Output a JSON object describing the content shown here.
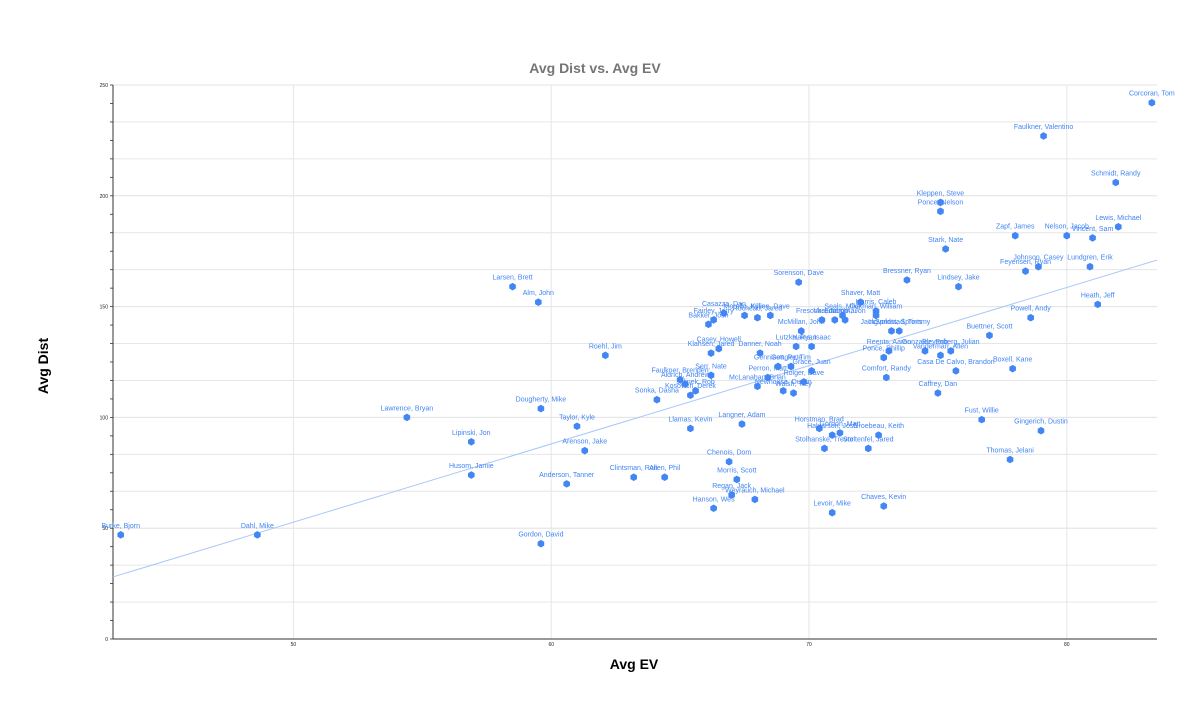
{
  "chart_data": {
    "type": "scatter",
    "title": "Avg Dist vs. Avg EV",
    "xlabel": "Avg EV",
    "ylabel": "Avg Dist",
    "xlim": [
      43,
      83.5
    ],
    "ylim": [
      0,
      250
    ],
    "x_ticks": [
      50,
      60,
      70,
      80
    ],
    "y_ticks": [
      0,
      50,
      100,
      150,
      200,
      250
    ],
    "grid": true,
    "legend": "none",
    "trendline": {
      "type": "linear",
      "x": [
        43,
        83.5
      ],
      "y": [
        28,
        171
      ]
    },
    "points": [
      {
        "label": "Corcoran, Tom",
        "x": 83.3,
        "y": 242
      },
      {
        "label": "Faulkner, Valentino",
        "x": 79.1,
        "y": 227
      },
      {
        "label": "Schmidt, Randy",
        "x": 81.9,
        "y": 206
      },
      {
        "label": "Kleppen, Steve",
        "x": 75.1,
        "y": 197
      },
      {
        "label": "Ponce, Nelson",
        "x": 75.1,
        "y": 193
      },
      {
        "label": "Zapf, James",
        "x": 78.0,
        "y": 182
      },
      {
        "label": "Nelson, Jacob",
        "x": 80.0,
        "y": 182
      },
      {
        "label": "Vincent, Sam",
        "x": 81.0,
        "y": 181
      },
      {
        "label": "Lewis, Michael",
        "x": 82.0,
        "y": 186
      },
      {
        "label": "Stark, Nate",
        "x": 75.3,
        "y": 176
      },
      {
        "label": "Johnson, Casey",
        "x": 78.9,
        "y": 168
      },
      {
        "label": "Feyerisen, Ryan",
        "x": 78.4,
        "y": 166
      },
      {
        "label": "Lundgren, Erik",
        "x": 80.9,
        "y": 168
      },
      {
        "label": "Bressner, Ryan",
        "x": 73.8,
        "y": 162
      },
      {
        "label": "Lindsey, Jake",
        "x": 75.8,
        "y": 159
      },
      {
        "label": "Heath, Jeff",
        "x": 81.2,
        "y": 151
      },
      {
        "label": "Powell, Andy",
        "x": 78.6,
        "y": 145
      },
      {
        "label": "Sorenson, Dave",
        "x": 69.6,
        "y": 161
      },
      {
        "label": "Larsen, Brett",
        "x": 58.5,
        "y": 159
      },
      {
        "label": "Alm, John",
        "x": 59.5,
        "y": 152
      },
      {
        "label": "Casazza, Dan",
        "x": 66.7,
        "y": 147
      },
      {
        "label": "Fairley, Jerry",
        "x": 66.3,
        "y": 144
      },
      {
        "label": "Morello, Kylie",
        "x": 67.5,
        "y": 146
      },
      {
        "label": "Killion, Dave",
        "x": 68.5,
        "y": 146
      },
      {
        "label": "Rocheau, Jared",
        "x": 68.0,
        "y": 145
      },
      {
        "label": "Bakker, Josh",
        "x": 66.1,
        "y": 142
      },
      {
        "label": "Shaver, Matt",
        "x": 72.0,
        "y": 152
      },
      {
        "label": "Harris, Caleb",
        "x": 72.6,
        "y": 148
      },
      {
        "label": "Seals, Mike",
        "x": 71.3,
        "y": 146
      },
      {
        "label": "Ockman, William",
        "x": 72.6,
        "y": 146
      },
      {
        "label": "Fresonke, Jacob",
        "x": 70.5,
        "y": 144
      },
      {
        "label": "Vassman, Kai",
        "x": 71.0,
        "y": 144
      },
      {
        "label": "Edstrom, Jon",
        "x": 71.4,
        "y": 144
      },
      {
        "label": "McMillan, John",
        "x": 69.7,
        "y": 139
      },
      {
        "label": "JackSprints, Sprints",
        "x": 73.2,
        "y": 139
      },
      {
        "label": "Ingvoldstad, Tommy",
        "x": 73.5,
        "y": 139
      },
      {
        "label": "Buettner, Scott",
        "x": 77.0,
        "y": 137
      },
      {
        "label": "Roehl, Jim",
        "x": 62.1,
        "y": 128
      },
      {
        "label": "Casey, Howell",
        "x": 66.5,
        "y": 131
      },
      {
        "label": "Klahsen, Jared",
        "x": 66.2,
        "y": 129
      },
      {
        "label": "Lutzka, Ryan",
        "x": 69.5,
        "y": 132
      },
      {
        "label": "Hales, Isaac",
        "x": 70.1,
        "y": 132
      },
      {
        "label": "Danner, Noah",
        "x": 68.1,
        "y": 129
      },
      {
        "label": "Bleyenberg, Julian",
        "x": 75.5,
        "y": 130
      },
      {
        "label": "Reents, Aaron",
        "x": 73.1,
        "y": 130
      },
      {
        "label": "Gonzalez, Rob",
        "x": 74.5,
        "y": 130
      },
      {
        "label": "Ponce, Phillip",
        "x": 72.9,
        "y": 127
      },
      {
        "label": "Vandermarr, Allen",
        "x": 75.1,
        "y": 128
      },
      {
        "label": "Gennicott, Pete",
        "x": 68.8,
        "y": 123
      },
      {
        "label": "Grace, Juan",
        "x": 70.1,
        "y": 121
      },
      {
        "label": "Gengler, Tim",
        "x": 69.3,
        "y": 123
      },
      {
        "label": "Casa De Calvo, Brandon",
        "x": 75.7,
        "y": 121
      },
      {
        "label": "Boxell, Kane",
        "x": 77.9,
        "y": 122
      },
      {
        "label": "Serr, Nate",
        "x": 66.2,
        "y": 119
      },
      {
        "label": "Faulkner, Brenden",
        "x": 65.0,
        "y": 117
      },
      {
        "label": "Perron, Matt",
        "x": 68.4,
        "y": 118
      },
      {
        "label": "Roiger, Dave",
        "x": 69.8,
        "y": 116
      },
      {
        "label": "Comfort, Randy",
        "x": 73.0,
        "y": 118
      },
      {
        "label": "Aldrich, Andrew",
        "x": 65.2,
        "y": 115
      },
      {
        "label": "McLanahan, Brian",
        "x": 68.0,
        "y": 114
      },
      {
        "label": "Newhouse, Dustin",
        "x": 69.0,
        "y": 112
      },
      {
        "label": "Walsh, Trey",
        "x": 69.4,
        "y": 111
      },
      {
        "label": "Jelinek, Rob",
        "x": 65.6,
        "y": 112
      },
      {
        "label": "Sonka, Dasha",
        "x": 64.1,
        "y": 108
      },
      {
        "label": "Kosovich, Derek",
        "x": 65.4,
        "y": 110
      },
      {
        "label": "Caffrey, Dan",
        "x": 75.0,
        "y": 111
      },
      {
        "label": "Lawrence, Bryan",
        "x": 54.4,
        "y": 100
      },
      {
        "label": "Dougherty, Mike",
        "x": 59.6,
        "y": 104
      },
      {
        "label": "Taylor, Kyle",
        "x": 61.0,
        "y": 96
      },
      {
        "label": "Llamas, Kevin",
        "x": 65.4,
        "y": 95
      },
      {
        "label": "Langner, Adam",
        "x": 67.4,
        "y": 97
      },
      {
        "label": "Fust, Willie",
        "x": 76.7,
        "y": 99
      },
      {
        "label": "Gingerich, Dustin",
        "x": 79.0,
        "y": 94
      },
      {
        "label": "Horstman, Brad",
        "x": 70.4,
        "y": 95
      },
      {
        "label": "Gordon, Matt",
        "x": 71.2,
        "y": 93
      },
      {
        "label": "Halvarson, Josh",
        "x": 70.9,
        "y": 92
      },
      {
        "label": "Groebeau, Keith",
        "x": 72.7,
        "y": 92
      },
      {
        "label": "Lipinski, Jon",
        "x": 56.9,
        "y": 89
      },
      {
        "label": "Arenson, Jake",
        "x": 61.3,
        "y": 85
      },
      {
        "label": "Stolhanske, Trevor",
        "x": 70.6,
        "y": 86
      },
      {
        "label": "Stoltenfel, Jared",
        "x": 72.3,
        "y": 86
      },
      {
        "label": "Thomas, Jelani",
        "x": 77.8,
        "y": 81
      },
      {
        "label": "Chenois, Dom",
        "x": 66.9,
        "y": 80
      },
      {
        "label": "Husom, Jamie",
        "x": 56.9,
        "y": 74
      },
      {
        "label": "Anderson, Tanner",
        "x": 60.6,
        "y": 70
      },
      {
        "label": "Clintsman, Ron",
        "x": 63.2,
        "y": 73
      },
      {
        "label": "Allen, Phil",
        "x": 64.4,
        "y": 73
      },
      {
        "label": "Morris, Scott",
        "x": 67.2,
        "y": 72
      },
      {
        "label": "Regan, Jack",
        "x": 67.0,
        "y": 65
      },
      {
        "label": "Weyrauch, Michael",
        "x": 67.9,
        "y": 63
      },
      {
        "label": "Hanson, Wes",
        "x": 66.3,
        "y": 59
      },
      {
        "label": "Levoir, Mike",
        "x": 70.9,
        "y": 57
      },
      {
        "label": "Chaves, Kevin",
        "x": 72.9,
        "y": 60
      },
      {
        "label": "Burke, Bjorn",
        "x": 43.3,
        "y": 47
      },
      {
        "label": "Dahl, Mike",
        "x": 48.6,
        "y": 47
      },
      {
        "label": "Gordon, David",
        "x": 59.6,
        "y": 43
      }
    ]
  }
}
